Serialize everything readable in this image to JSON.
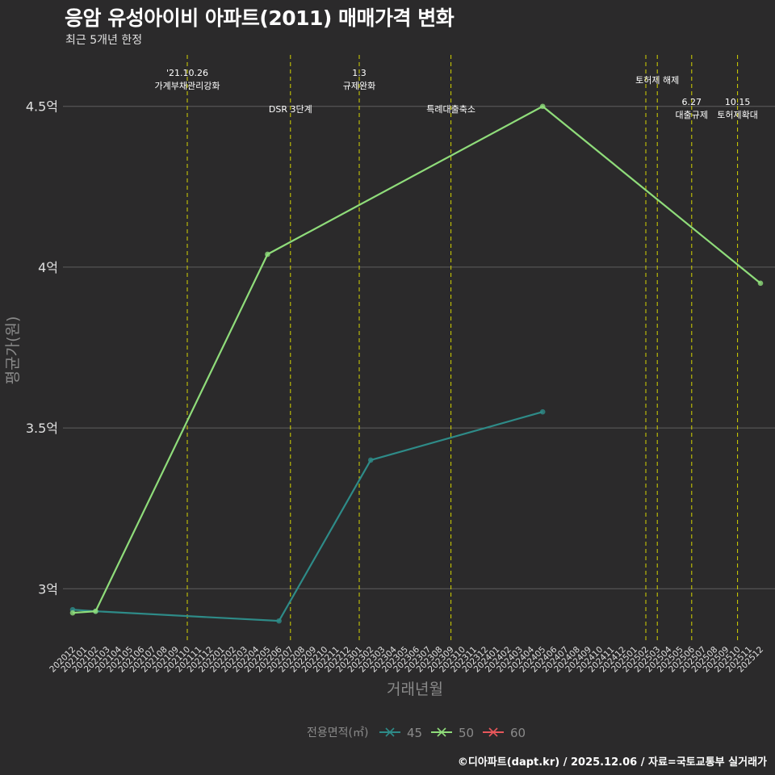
{
  "header": {
    "title": "응암 유성아이비 아파트(2011) 매매가격 변화",
    "subtitle": "최근 5개년 한정"
  },
  "caption": "©디아파트(dapt.kr) / 2025.12.06 / 자료=국토교통부 실거래가",
  "chart_data": {
    "type": "line",
    "title": "응암 유성아이비 아파트(2011) 매매가격 변화",
    "subtitle": "최근 5개년 한정",
    "xlabel": "거래년월",
    "ylabel": "평균가(원)",
    "ylim": [
      2.83,
      4.66
    ],
    "yticks": [
      {
        "value": 3.0,
        "label": "3억"
      },
      {
        "value": 3.5,
        "label": "3.5억"
      },
      {
        "value": 4.0,
        "label": "4억"
      },
      {
        "value": 4.5,
        "label": "4.5억"
      }
    ],
    "categories": [
      "202012",
      "202101",
      "202102",
      "202103",
      "202104",
      "202105",
      "202106",
      "202107",
      "202108",
      "202109",
      "202110",
      "202111",
      "202112",
      "202201",
      "202202",
      "202203",
      "202204",
      "202205",
      "202206",
      "202207",
      "202208",
      "202209",
      "202210",
      "202211",
      "202212",
      "202301",
      "202302",
      "202303",
      "202304",
      "202305",
      "202306",
      "202307",
      "202308",
      "202309",
      "202310",
      "202311",
      "202312",
      "202401",
      "202402",
      "202403",
      "202404",
      "202405",
      "202406",
      "202407",
      "202408",
      "202409",
      "202410",
      "202411",
      "202412",
      "202501",
      "202502",
      "202503",
      "202504",
      "202505",
      "202506",
      "202507",
      "202508",
      "202509",
      "202510",
      "202511",
      "202512"
    ],
    "series": [
      {
        "name": "45",
        "color": "#2e8b88",
        "points": [
          {
            "x": "202012",
            "y": 2.935
          },
          {
            "x": "202102",
            "y": 2.93
          },
          {
            "x": "202206",
            "y": 2.9
          },
          {
            "x": "202302",
            "y": 3.4
          },
          {
            "x": "202405",
            "y": 3.55
          }
        ]
      },
      {
        "name": "50",
        "color": "#8fdc7a",
        "points": [
          {
            "x": "202012",
            "y": 2.925
          },
          {
            "x": "202102",
            "y": 2.93
          },
          {
            "x": "202205",
            "y": 4.04
          },
          {
            "x": "202405",
            "y": 4.5
          },
          {
            "x": "202512",
            "y": 3.95
          }
        ]
      },
      {
        "name": "60",
        "color": "#e8575b",
        "points": []
      }
    ],
    "annotations": [
      {
        "x": "202110",
        "lines": [
          "'21.10.26",
          "가계부채관리강화"
        ],
        "row": "top"
      },
      {
        "x": "202207",
        "lines": [
          "DSR 3단계"
        ],
        "row": "mid"
      },
      {
        "x": "202301",
        "lines": [
          "1.3",
          "규제완화"
        ],
        "row": "top"
      },
      {
        "x": "202309",
        "lines": [
          "특례대출축소"
        ],
        "row": "mid"
      },
      {
        "x": "202502",
        "lines": [],
        "row": "top"
      },
      {
        "x": "202503",
        "lines": [
          "토허제 해제"
        ],
        "row": "top2"
      },
      {
        "x": "202506",
        "lines": [
          "6.27",
          "대출규제"
        ],
        "row": "low"
      },
      {
        "x": "202510",
        "lines": [
          "10.15",
          "토허제확대"
        ],
        "row": "low"
      }
    ],
    "legend": {
      "title": "전용면적(㎡)",
      "position": "bottom"
    },
    "colors": {
      "background": "#2b2a2b",
      "grid": "#5e5e5e",
      "text": "#e0e0e0",
      "axis_title": "#8a8a8a",
      "annotation_line": "#d4d400"
    }
  }
}
